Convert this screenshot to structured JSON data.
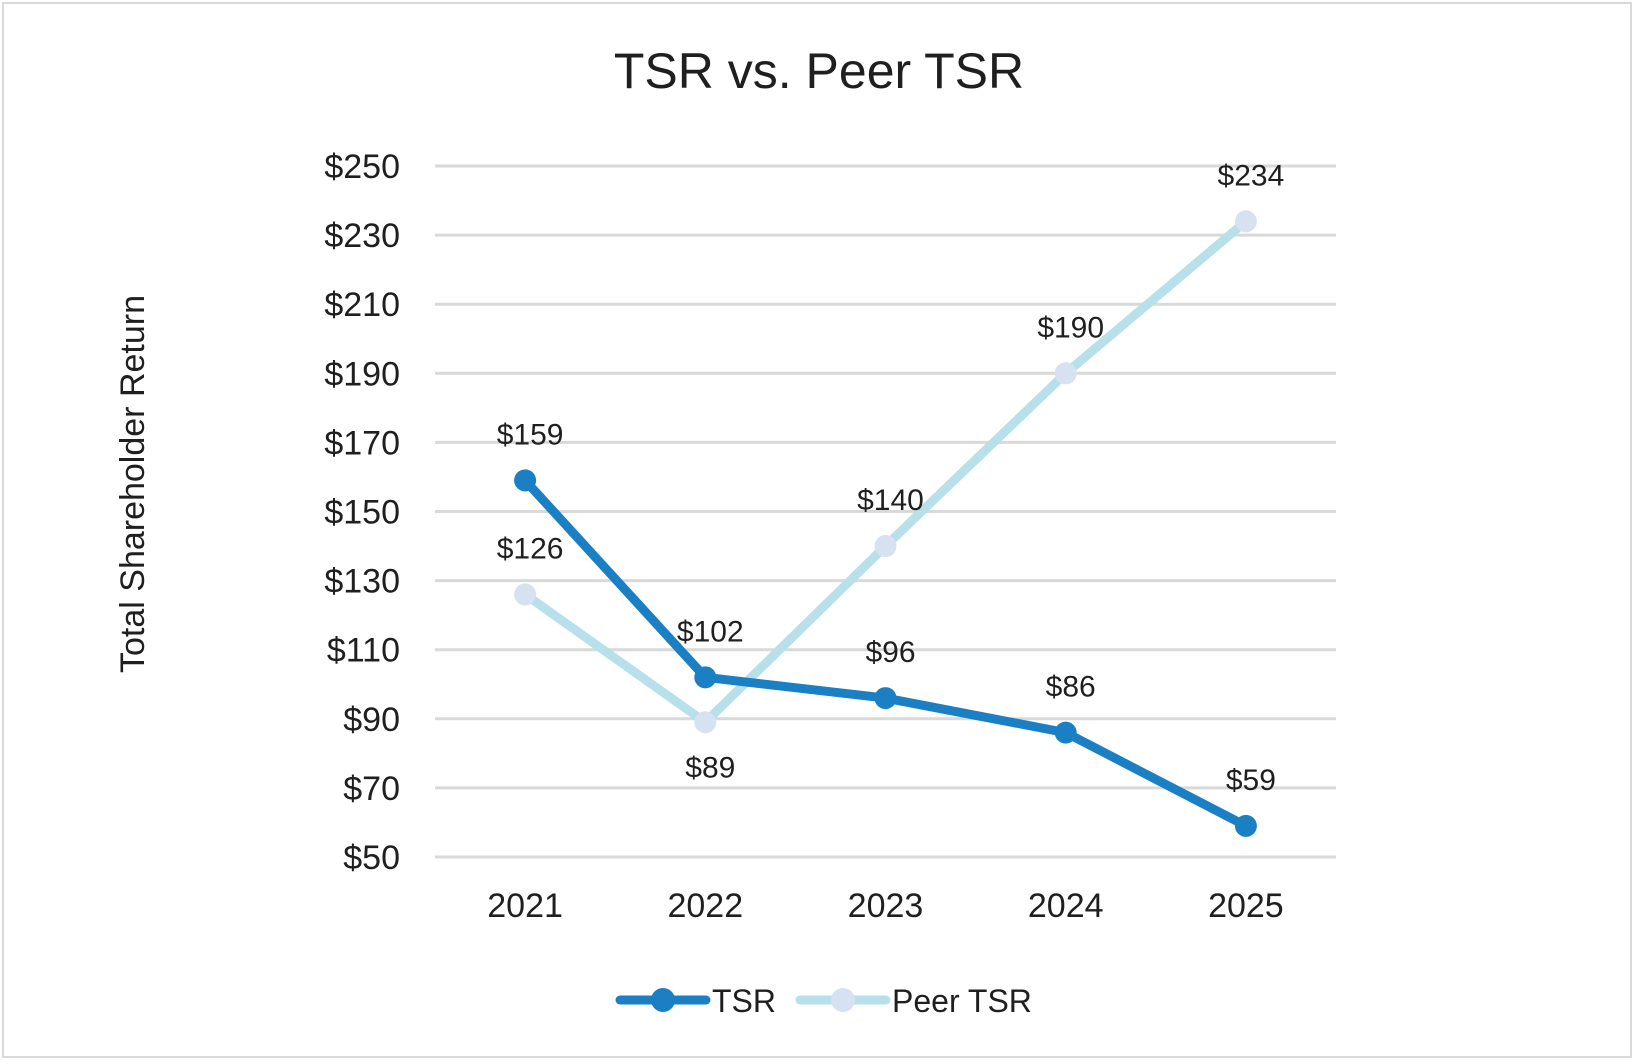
{
  "chart_data": {
    "type": "line",
    "title": "TSR vs. Peer TSR",
    "xlabel": "",
    "ylabel": "Total Shareholder Return",
    "categories": [
      "2021",
      "2022",
      "2023",
      "2024",
      "2025"
    ],
    "ylim": [
      50,
      250
    ],
    "yticks": [
      50,
      70,
      90,
      110,
      130,
      150,
      170,
      190,
      210,
      230,
      250
    ],
    "ytick_labels": [
      "$50",
      "$70",
      "$90",
      "$110",
      "$130",
      "$150",
      "$170",
      "$190",
      "$210",
      "$230",
      "$250"
    ],
    "grid": true,
    "legend_position": "bottom",
    "series": [
      {
        "name": "TSR",
        "values": [
          159,
          102,
          96,
          86,
          59
        ],
        "labels": [
          "$159",
          "$102",
          "$96",
          "$86",
          "$59"
        ],
        "line_color": "#1a7fc3",
        "marker_color": "#1a7fc3"
      },
      {
        "name": "Peer TSR",
        "values": [
          126,
          89,
          140,
          190,
          234
        ],
        "labels": [
          "$126",
          "$89",
          "$140",
          "$190",
          "$234"
        ],
        "line_color": "#b8e0ea",
        "marker_color": "#d6e2f1"
      }
    ]
  }
}
